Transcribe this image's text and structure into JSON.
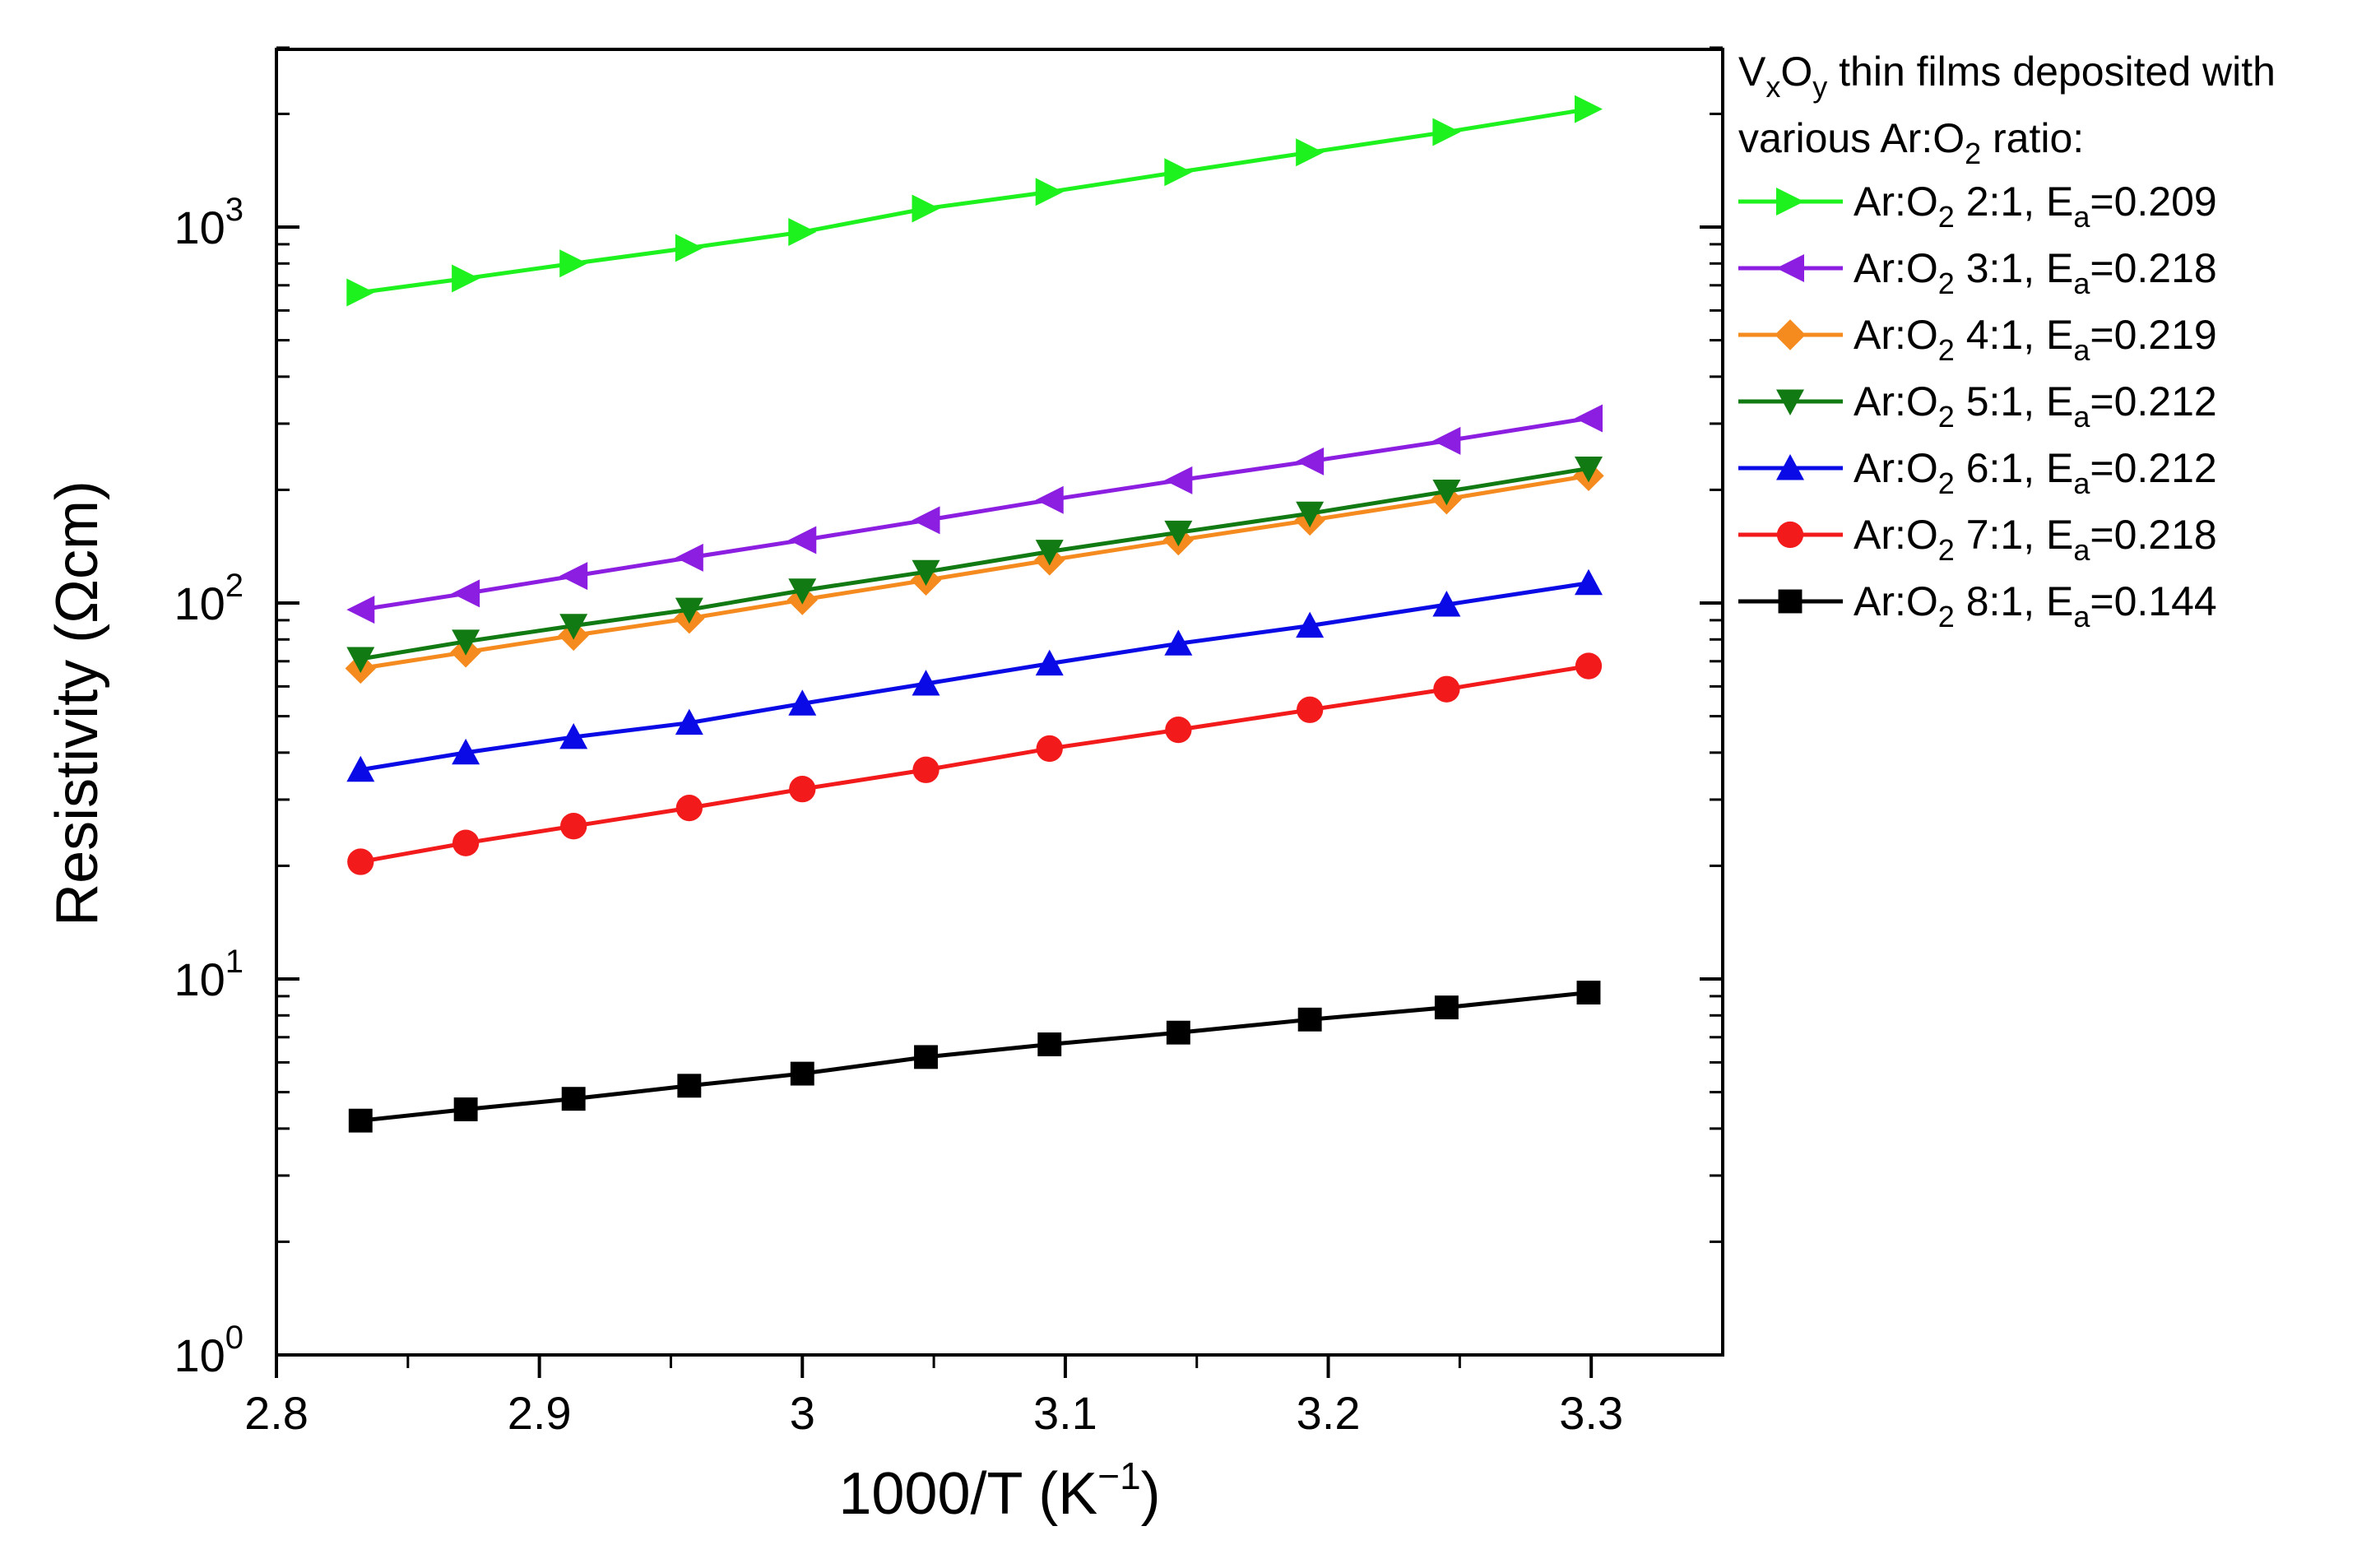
{
  "chart_data": {
    "type": "line",
    "title": "",
    "xlabel": "1000/T (K",
    "xlabel_sup": "−1",
    "xlabel_tail": ")",
    "ylabel": "Resistivity (Ωcm)",
    "yscale": "log",
    "xlim": [
      2.8,
      3.35
    ],
    "ylim": [
      1,
      3000
    ],
    "x_ticks": [
      2.8,
      2.9,
      3.0,
      3.1,
      3.2,
      3.3
    ],
    "x_tick_labels": [
      "2.8",
      "2.9",
      "3",
      "3.1",
      "3.2",
      "3.3"
    ],
    "y_ticks": [
      {
        "value": 1,
        "base": "10",
        "exp": "0"
      },
      {
        "value": 10,
        "base": "10",
        "exp": "1"
      },
      {
        "value": 100,
        "base": "10",
        "exp": "2"
      },
      {
        "value": 1000,
        "base": "10",
        "exp": "3"
      }
    ],
    "legend": {
      "placement": "outside-right",
      "title_line1": {
        "a": "V",
        "a_sub": "x",
        "b": "O",
        "b_sub": "y",
        "rest": " thin films deposited with"
      },
      "title_line2": {
        "a": "various Ar:O",
        "a_sub": "2",
        "rest": " ratio:"
      }
    },
    "x": [
      2.832,
      2.872,
      2.913,
      2.957,
      3.0,
      3.047,
      3.094,
      3.143,
      3.193,
      3.245,
      3.299
    ],
    "series": [
      {
        "name": "Ar:O2 2:1, Ea=0.209",
        "ratio": "2:1",
        "ea": "0.209",
        "color": "#1ef21e",
        "marker": "triangle-right",
        "values": [
          670,
          730,
          800,
          880,
          970,
          1120,
          1240,
          1400,
          1580,
          1790,
          2060
        ]
      },
      {
        "name": "Ar:O2 3:1, Ea=0.218",
        "ratio": "3:1",
        "ea": "0.218",
        "color": "#8b1ee0",
        "marker": "triangle-left",
        "values": [
          96,
          106,
          118,
          132,
          147,
          166,
          188,
          212,
          238,
          270,
          310
        ]
      },
      {
        "name": "Ar:O2 4:1, Ea=0.219",
        "ratio": "4:1",
        "ea": "0.219",
        "color": "#f58a1e",
        "marker": "diamond",
        "values": [
          67,
          74,
          82,
          91,
          102,
          115,
          130,
          147,
          166,
          189,
          218
        ]
      },
      {
        "name": "Ar:O2 5:1, Ea=0.212",
        "ratio": "5:1",
        "ea": "0.212",
        "color": "#127a12",
        "marker": "triangle-down",
        "values": [
          71,
          79,
          87,
          96,
          108,
          121,
          137,
          154,
          173,
          198,
          228
        ]
      },
      {
        "name": "Ar:O2 6:1, Ea=0.212",
        "ratio": "6:1",
        "ea": "0.212",
        "color": "#0a0ae6",
        "marker": "triangle-up",
        "values": [
          36,
          40,
          44,
          48,
          54,
          61,
          69,
          78,
          87,
          99,
          113
        ]
      },
      {
        "name": "Ar:O2 7:1, Ea=0.218",
        "ratio": "7:1",
        "ea": "0.218",
        "color": "#f21a1a",
        "marker": "circle",
        "values": [
          20.5,
          23,
          25.5,
          28.5,
          32,
          36,
          41,
          46,
          52,
          59,
          68
        ]
      },
      {
        "name": "Ar:O2 8:1, Ea=0.144",
        "ratio": "8:1",
        "ea": "0.144",
        "color": "#000000",
        "marker": "square",
        "values": [
          4.2,
          4.5,
          4.8,
          5.2,
          5.6,
          6.2,
          6.7,
          7.2,
          7.8,
          8.4,
          9.2
        ]
      }
    ]
  }
}
